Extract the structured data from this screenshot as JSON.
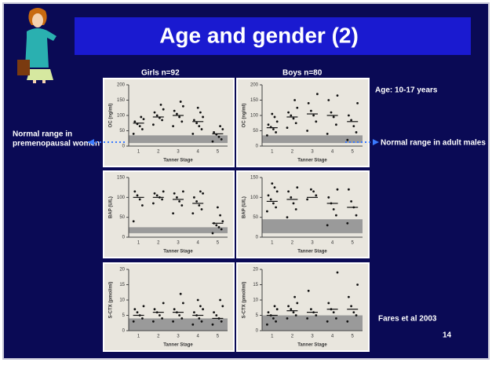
{
  "slide": {
    "title": "Age and gender (2)",
    "girls_header": "Girls n=92",
    "boys_header": "Boys n=80",
    "age_note": "Age: 10-17 years",
    "left_note_line1": "Normal range in",
    "left_note_line2": "premenopausal women",
    "right_note": "Normal range in adult males",
    "citation": "Fares et al 2003",
    "page_number": "14"
  },
  "chart_data": [
    {
      "type": "scatter",
      "x_label": "Tanner Stage",
      "y_label": "OC (ng/ml)",
      "categories": [
        1,
        2,
        3,
        4,
        5
      ],
      "ylim": [
        0,
        200
      ],
      "yticks": [
        0,
        50,
        100,
        150,
        200
      ],
      "normal_range": [
        10,
        35
      ],
      "points": [
        [
          40,
          55,
          65,
          72,
          80,
          88,
          95
        ],
        [
          70,
          85,
          92,
          100,
          110,
          120,
          135
        ],
        [
          65,
          80,
          95,
          105,
          115,
          130,
          145
        ],
        [
          40,
          55,
          65,
          75,
          85,
          95,
          110,
          125
        ],
        [
          15,
          22,
          30,
          38,
          45,
          55,
          65
        ]
      ],
      "means": [
        75,
        95,
        100,
        80,
        40
      ]
    },
    {
      "type": "scatter",
      "x_label": "Tanner Stage",
      "y_label": "OC (ng/ml)",
      "categories": [
        1,
        2,
        3,
        4,
        5
      ],
      "ylim": [
        0,
        200
      ],
      "yticks": [
        0,
        50,
        100,
        150,
        200
      ],
      "normal_range": [
        10,
        35
      ],
      "points": [
        [
          35,
          45,
          55,
          62,
          70,
          80,
          95,
          105
        ],
        [
          60,
          75,
          90,
          100,
          110,
          125,
          150
        ],
        [
          50,
          80,
          100,
          115,
          140,
          170
        ],
        [
          40,
          70,
          95,
          110,
          150,
          165
        ],
        [
          20,
          45,
          65,
          85,
          100,
          140
        ]
      ],
      "means": [
        60,
        95,
        105,
        100,
        80
      ]
    },
    {
      "type": "scatter",
      "x_label": "Tanner Stage",
      "y_label": "BAP (U/L)",
      "categories": [
        1,
        2,
        3,
        4,
        5
      ],
      "ylim": [
        0,
        150
      ],
      "yticks": [
        0,
        50,
        100,
        150
      ],
      "normal_range": [
        10,
        25
      ],
      "points": [
        [
          40,
          80,
          95,
          105,
          115
        ],
        [
          85,
          95,
          100,
          105,
          110,
          115
        ],
        [
          60,
          80,
          90,
          100,
          110,
          115
        ],
        [
          60,
          70,
          80,
          90,
          100,
          110,
          115
        ],
        [
          10,
          20,
          25,
          30,
          35,
          40,
          55,
          75
        ]
      ],
      "means": [
        100,
        100,
        95,
        85,
        35
      ]
    },
    {
      "type": "scatter",
      "x_label": "Tanner Stage",
      "y_label": "BAP (U/L)",
      "categories": [
        1,
        2,
        3,
        4,
        5
      ],
      "ylim": [
        0,
        150
      ],
      "yticks": [
        0,
        50,
        100,
        150
      ],
      "normal_range": [
        10,
        45
      ],
      "points": [
        [
          65,
          75,
          85,
          95,
          105,
          115,
          125,
          135
        ],
        [
          50,
          70,
          85,
          100,
          115,
          125
        ],
        [
          95,
          105,
          115,
          120
        ],
        [
          30,
          55,
          70,
          85,
          100,
          120
        ],
        [
          35,
          55,
          75,
          90,
          120
        ]
      ],
      "means": [
        90,
        95,
        100,
        85,
        75
      ]
    },
    {
      "type": "scatter",
      "x_label": "Tanner Stage",
      "y_label": "S-CTX (pmol/ml)",
      "categories": [
        1,
        2,
        3,
        4,
        5
      ],
      "ylim": [
        0,
        20
      ],
      "yticks": [
        0,
        5,
        10,
        15,
        20
      ],
      "normal_range": [
        0,
        4
      ],
      "points": [
        [
          3,
          4,
          5,
          6,
          7,
          8
        ],
        [
          3,
          4,
          5,
          6,
          7,
          9
        ],
        [
          3,
          4,
          5,
          6,
          7,
          9,
          12
        ],
        [
          2,
          3,
          4,
          5,
          6,
          7,
          8,
          10
        ],
        [
          2,
          3,
          4,
          5,
          6,
          8,
          10
        ]
      ],
      "means": [
        5,
        6,
        6,
        5,
        4
      ]
    },
    {
      "type": "scatter",
      "x_label": "Tanner Stage",
      "y_label": "S-CTX (pmol/ml)",
      "categories": [
        1,
        2,
        3,
        4,
        5
      ],
      "ylim": [
        0,
        20
      ],
      "yticks": [
        0,
        5,
        10,
        15,
        20
      ],
      "normal_range": [
        0,
        5
      ],
      "points": [
        [
          2,
          3,
          4,
          5,
          6,
          7,
          8
        ],
        [
          4,
          5,
          6,
          7,
          8,
          9,
          11
        ],
        [
          4,
          5,
          6,
          7,
          13
        ],
        [
          3,
          4,
          6,
          7,
          9,
          19
        ],
        [
          3,
          5,
          6,
          8,
          11,
          15
        ]
      ],
      "means": [
        5,
        6.5,
        6,
        7,
        7
      ]
    }
  ]
}
